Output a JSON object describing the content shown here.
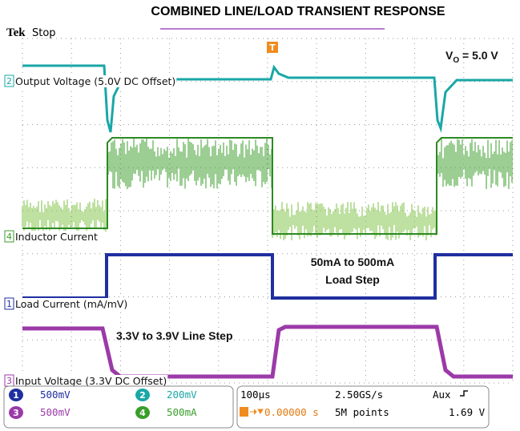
{
  "title": "COMBINED LINE/LOAD TRANSIENT RESPONSE",
  "status": {
    "brand": "Tek",
    "state": "Stop"
  },
  "trigger_marker": "T",
  "channels": [
    {
      "number": "2",
      "label": "Output Voltage (5.0V DC Offset)"
    },
    {
      "number": "4",
      "label": "Inductor Current"
    },
    {
      "number": "1",
      "label": "Load Current (mA/mV)"
    },
    {
      "number": "3",
      "label": "Input Voltage (3.3V DC Offset)"
    }
  ],
  "annotations": {
    "vo": {
      "main": "V",
      "sub": "O",
      "rest": " = 5.0 V"
    },
    "load_step": [
      "50mA to 500mA",
      "Load Step"
    ],
    "line_step": "3.3V to 3.9V Line Step"
  },
  "readouts": {
    "scales": [
      {
        "channel": "1",
        "value": "500mV"
      },
      {
        "channel": "2",
        "value": "200mV"
      },
      {
        "channel": "3",
        "value": "500mV"
      },
      {
        "channel": "4",
        "value": "500mA"
      }
    ],
    "timebase": "100µs",
    "sample_rate": "2.50GS/s",
    "trigger_source": "Aux",
    "trigger_position": "0.00000 s",
    "record_length": "5M points",
    "trigger_level": "1.69 V"
  }
}
